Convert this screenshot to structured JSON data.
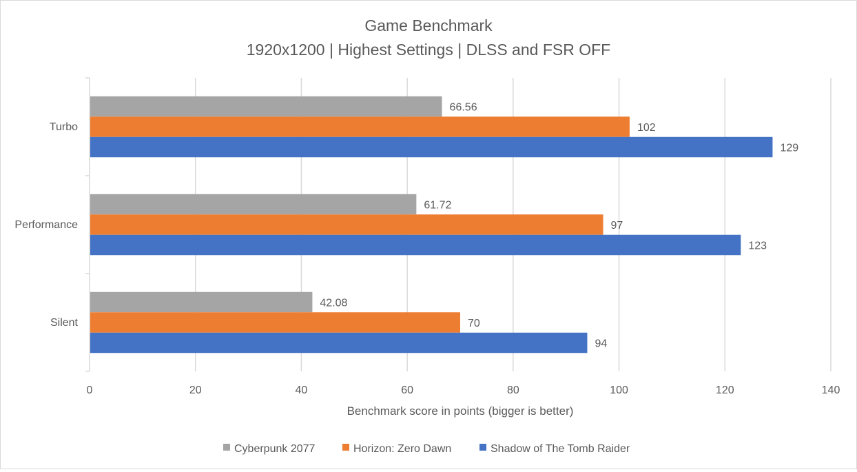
{
  "chart_data": {
    "type": "bar",
    "orientation": "horizontal",
    "title": "Game Benchmark",
    "subtitle": "1920x1200 | Highest Settings | DLSS and FSR OFF",
    "xlabel": "Benchmark score in points (bigger is better)",
    "ylabel": "",
    "categories": [
      "Turbo",
      "Performance",
      "Silent"
    ],
    "series": [
      {
        "name": "Cyberpunk 2077",
        "color": "#a5a5a5",
        "values": [
          66.56,
          61.72,
          42.08
        ],
        "labels": [
          "66.56",
          "61.72",
          "42.08"
        ]
      },
      {
        "name": "Horizon: Zero Dawn",
        "color": "#ed7d31",
        "values": [
          102,
          97,
          70
        ],
        "labels": [
          "102",
          "97",
          "70"
        ]
      },
      {
        "name": "Shadow of The Tomb Raider",
        "color": "#4472c4",
        "values": [
          129,
          123,
          94
        ],
        "labels": [
          "129",
          "123",
          "94"
        ]
      }
    ],
    "xlim": [
      0,
      140
    ],
    "xticks": [
      0,
      20,
      40,
      60,
      80,
      100,
      120,
      140
    ],
    "xtick_labels": [
      "0",
      "20",
      "40",
      "60",
      "80",
      "100",
      "120",
      "140"
    ],
    "grid": true,
    "legend": "bottom"
  }
}
